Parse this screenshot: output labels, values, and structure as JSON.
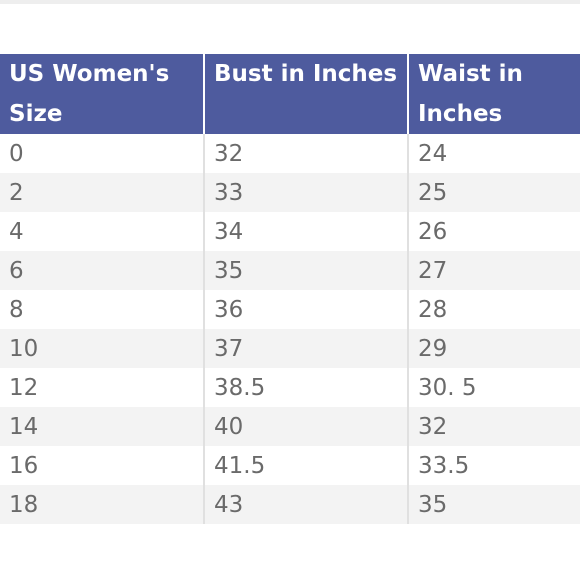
{
  "table": {
    "headers": [
      "US Women's Size",
      "Bust in Inches",
      "Waist in Inches"
    ],
    "rows": [
      [
        "0",
        "32",
        "24"
      ],
      [
        "2",
        "33",
        "25"
      ],
      [
        "4",
        "34",
        "26"
      ],
      [
        "6",
        "35",
        "27"
      ],
      [
        "8",
        "36",
        "28"
      ],
      [
        "10",
        "37",
        "29"
      ],
      [
        "12",
        "38.5",
        "30. 5"
      ],
      [
        "14",
        "40",
        "32"
      ],
      [
        "16",
        "41.5",
        "33.5"
      ],
      [
        "18",
        "43",
        "35"
      ]
    ]
  },
  "colors": {
    "header_bg": "#4e5b9e",
    "header_text": "#ffffff",
    "cell_text": "#6a6a6a",
    "alt_row": "#f3f3f3"
  }
}
